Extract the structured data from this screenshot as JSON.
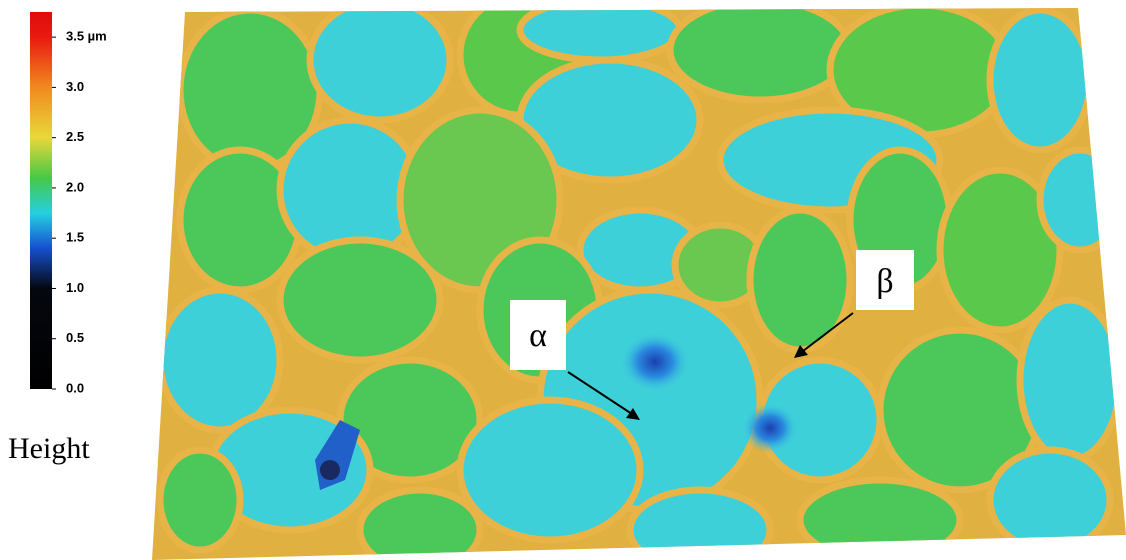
{
  "colorbar": {
    "label": "Height",
    "lim": [
      0,
      3.75
    ],
    "ticks": [
      {
        "value": 3.5,
        "label": "3.5 µm"
      },
      {
        "value": 3,
        "label": "3.0"
      },
      {
        "value": 2.5,
        "label": "2.5"
      },
      {
        "value": 2,
        "label": "2.0"
      },
      {
        "value": 1.5,
        "label": "1.5"
      },
      {
        "value": 1,
        "label": "1.0"
      },
      {
        "value": 0.5,
        "label": "0.5"
      },
      {
        "value": 0,
        "label": "0.0"
      }
    ],
    "colormap": [
      {
        "value": 0,
        "color": "#000000"
      },
      {
        "value": 1,
        "color": "#05070f"
      },
      {
        "value": 1.4,
        "color": "#1650d0"
      },
      {
        "value": 1.75,
        "color": "#25d0e0"
      },
      {
        "value": 2.1,
        "color": "#48c846"
      },
      {
        "value": 2.5,
        "color": "#e8d83a"
      },
      {
        "value": 3.0,
        "color": "#f08a1e"
      },
      {
        "value": 3.5,
        "color": "#e81a10"
      },
      {
        "value": 3.75,
        "color": "#e00c0c"
      }
    ]
  },
  "annotations": {
    "alpha": "α",
    "beta": "β"
  }
}
